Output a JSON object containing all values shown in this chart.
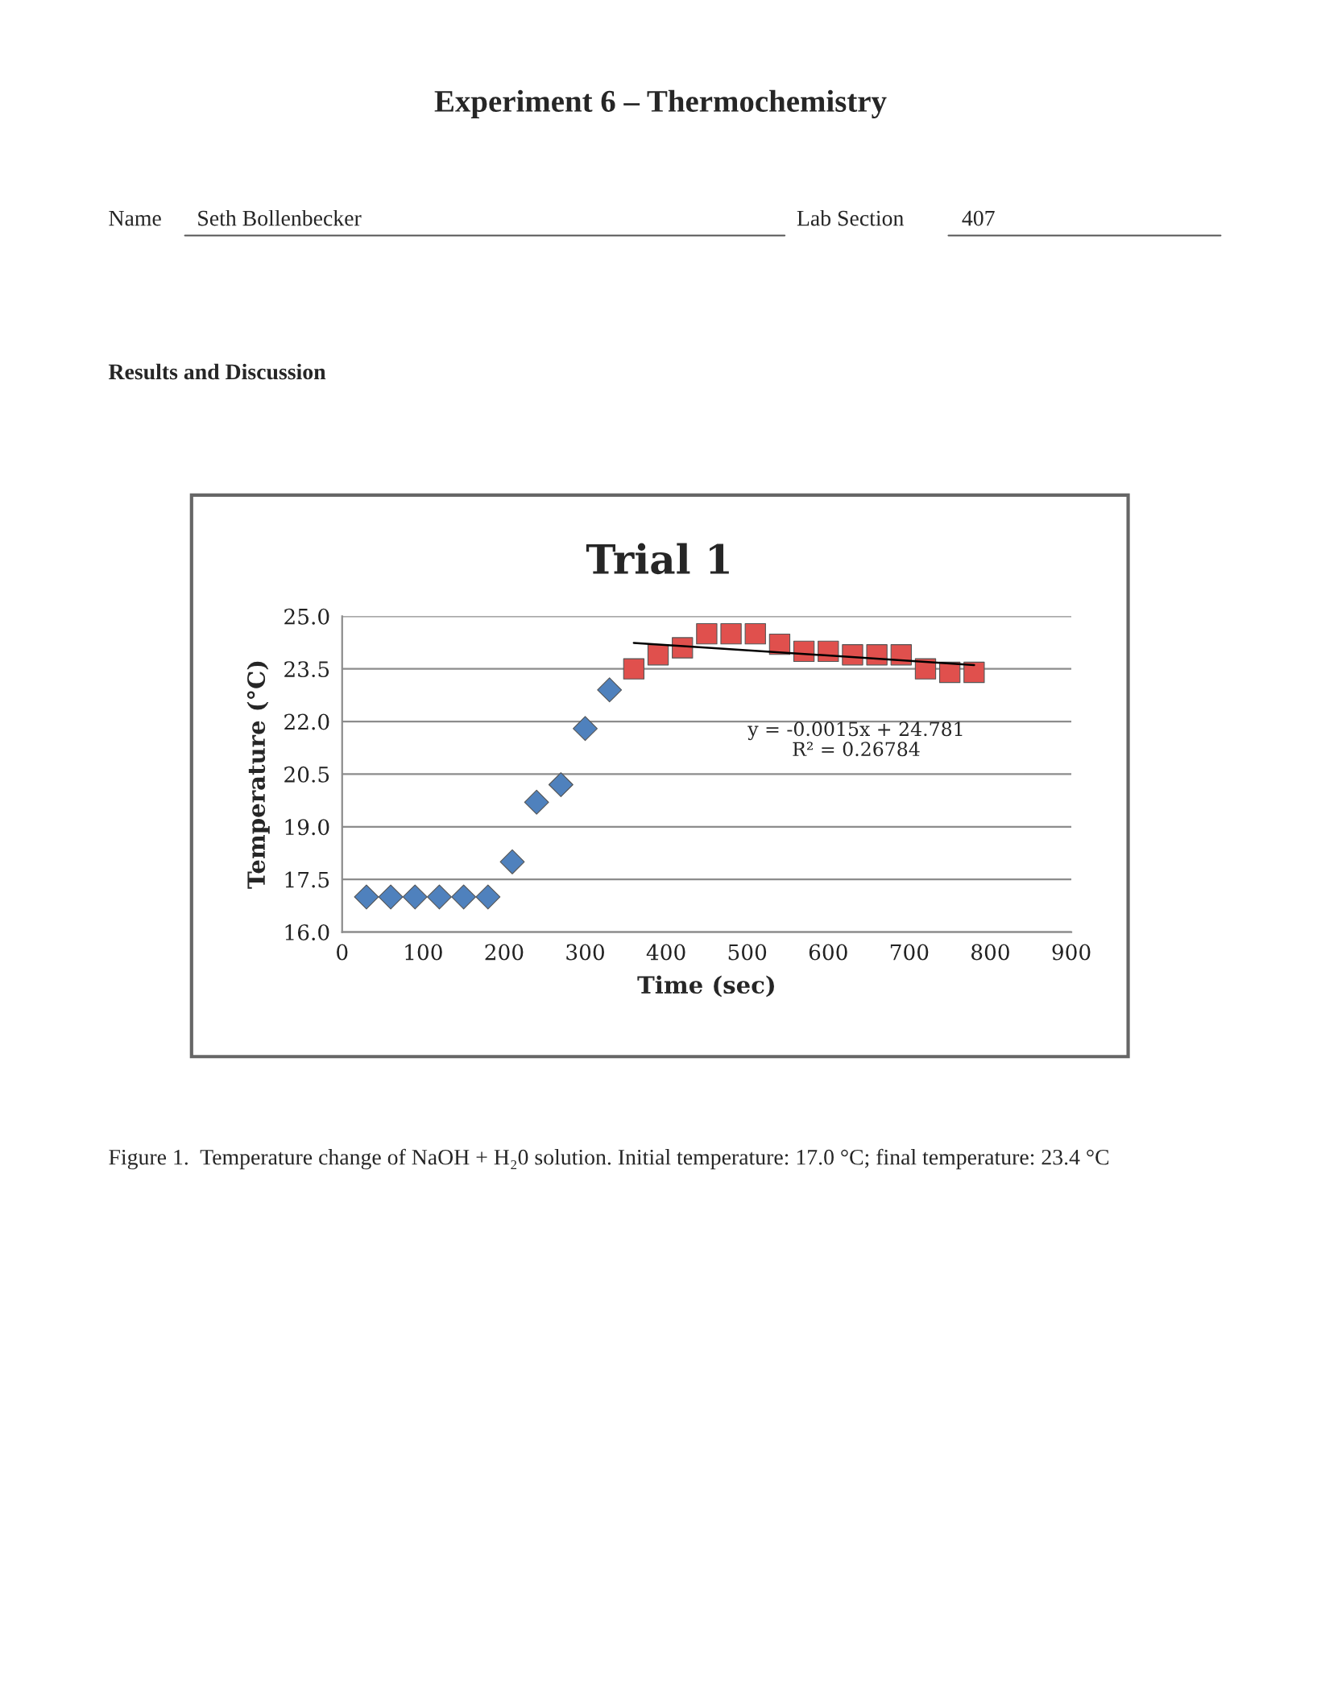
{
  "chart_data": {
    "type": "scatter",
    "title": "Trial 1",
    "xlabel": "Time (sec)",
    "ylabel": "Temperature (°C)",
    "series": [
      {
        "marker": "diamond",
        "color": "#4f81bd",
        "x": [
          30,
          60,
          90,
          120,
          150,
          180,
          210,
          240,
          270,
          300,
          330
        ],
        "values": [
          17.0,
          17.0,
          17.0,
          17.0,
          17.0,
          17.0,
          18.0,
          19.7,
          20.2,
          21.8,
          22.9
        ]
      },
      {
        "marker": "square",
        "color": "#e0504d",
        "x": [
          360,
          390,
          420,
          450,
          480,
          510,
          540,
          570,
          600,
          630,
          660,
          690,
          720,
          750,
          780
        ],
        "values": [
          23.5,
          23.9,
          24.1,
          24.5,
          24.5,
          24.5,
          24.2,
          24.0,
          24.0,
          23.9,
          23.9,
          23.9,
          23.5,
          23.4,
          23.4
        ]
      },
      {
        "type": "line",
        "marker": "none",
        "color": "#000000",
        "x": [
          360,
          780
        ],
        "values": [
          24.24,
          23.61
        ]
      }
    ],
    "xlim": [
      0,
      900
    ],
    "xticks": [
      0,
      100,
      200,
      300,
      400,
      500,
      600,
      700,
      800,
      900
    ],
    "ylim": [
      16.0,
      25.0
    ],
    "yticks": [
      {
        "value": 16.0,
        "label": "16.0"
      },
      {
        "value": 17.5,
        "label": "17.5"
      },
      {
        "value": 19.0,
        "label": "19.0"
      },
      {
        "value": 20.5,
        "label": "20.5"
      },
      {
        "value": 22.0,
        "label": "22.0"
      },
      {
        "value": 23.5,
        "label": "23.5"
      },
      {
        "value": 25.0,
        "label": "25.0"
      }
    ],
    "grid": "y",
    "legend": false,
    "annotations": [
      "Experiment 6 – Thermochemistry",
      "Name",
      "Seth Bollenbecker",
      "Lab Section",
      "407",
      "Results and Discussion",
      "y = -0.0015x + 24.781\nR² = 0.26784",
      "Figure 1.  Temperature change of NaOH + H₂0 solution. Initial temperature: 17.0 °C; final temperature: 23.4 °C"
    ]
  }
}
